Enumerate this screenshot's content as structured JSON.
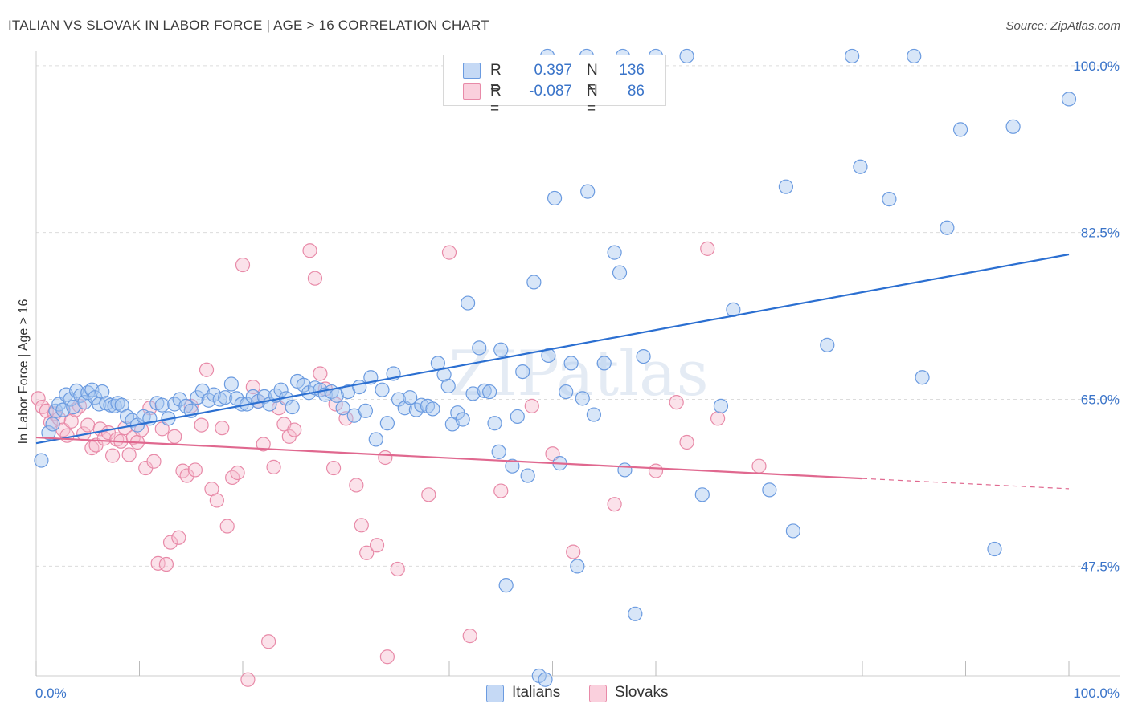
{
  "header": {
    "title": "ITALIAN VS SLOVAK IN LABOR FORCE | AGE > 16 CORRELATION CHART",
    "source": "Source: ZipAtlas.com"
  },
  "legend": {
    "rows": [
      {
        "r_label": "R =",
        "r_value": "0.397",
        "n_label": "N =",
        "n_value": "136"
      },
      {
        "r_label": "R =",
        "r_value": "-0.087",
        "n_label": "N =",
        "n_value": "86"
      }
    ],
    "bottom": [
      {
        "label": "Italians"
      },
      {
        "label": "Slovaks"
      }
    ]
  },
  "watermark": "ZIPatlas",
  "colors": {
    "italians_fill": "#a9c8f0",
    "italians_stroke": "#6b9be0",
    "italians_line": "#2b6fd1",
    "slovaks_fill": "#f7bfd0",
    "slovaks_stroke": "#e88aa8",
    "slovaks_line": "#e0688f",
    "tick_text": "#3a74c9",
    "grid": "#dcdcdc"
  },
  "chart_data": {
    "type": "scatter",
    "title": "ITALIAN VS SLOVAK IN LABOR FORCE | AGE > 16 CORRELATION CHART",
    "xlabel": "",
    "ylabel": "In Labor Force | Age > 16",
    "xlim": [
      0,
      100
    ],
    "ylim": [
      36,
      101.5
    ],
    "x_tick_labels": [
      "0.0%",
      "100.0%"
    ],
    "y_ticks": [
      47.5,
      65.0,
      82.5,
      100.0
    ],
    "y_tick_labels": [
      "47.5%",
      "65.0%",
      "82.5%",
      "100.0%"
    ],
    "grid": true,
    "legend_position": "top-center",
    "series": [
      {
        "name": "Italians",
        "R": 0.397,
        "N": 136,
        "trend": {
          "x": [
            0,
            100
          ],
          "y": [
            60.4,
            80.2
          ],
          "dashed_from": null
        },
        "points": [
          [
            0.5,
            58.6
          ],
          [
            1.2,
            61.5
          ],
          [
            1.6,
            62.4
          ],
          [
            1.9,
            63.8
          ],
          [
            2.2,
            64.5
          ],
          [
            2.6,
            63.9
          ],
          [
            2.9,
            65.5
          ],
          [
            3.3,
            65.0
          ],
          [
            3.6,
            64.2
          ],
          [
            3.9,
            65.9
          ],
          [
            4.3,
            65.4
          ],
          [
            4.7,
            64.7
          ],
          [
            5.0,
            65.7
          ],
          [
            5.4,
            66.0
          ],
          [
            5.7,
            65.2
          ],
          [
            6.1,
            64.5
          ],
          [
            6.4,
            65.8
          ],
          [
            6.8,
            64.6
          ],
          [
            7.2,
            64.4
          ],
          [
            7.6,
            64.3
          ],
          [
            7.9,
            64.6
          ],
          [
            8.3,
            64.4
          ],
          [
            8.8,
            63.2
          ],
          [
            9.3,
            62.8
          ],
          [
            9.8,
            62.3
          ],
          [
            10.4,
            63.2
          ],
          [
            11.0,
            63.0
          ],
          [
            11.7,
            64.6
          ],
          [
            12.2,
            64.4
          ],
          [
            12.8,
            63.0
          ],
          [
            13.4,
            64.5
          ],
          [
            13.9,
            65.0
          ],
          [
            14.5,
            64.3
          ],
          [
            15.0,
            63.8
          ],
          [
            15.6,
            65.2
          ],
          [
            16.1,
            65.9
          ],
          [
            16.7,
            64.9
          ],
          [
            17.2,
            65.5
          ],
          [
            17.8,
            65.0
          ],
          [
            18.3,
            65.2
          ],
          [
            18.9,
            66.6
          ],
          [
            19.4,
            65.1
          ],
          [
            19.9,
            64.5
          ],
          [
            20.4,
            64.5
          ],
          [
            21.0,
            65.3
          ],
          [
            21.5,
            64.8
          ],
          [
            22.1,
            65.3
          ],
          [
            22.6,
            64.5
          ],
          [
            23.2,
            65.4
          ],
          [
            23.7,
            66.0
          ],
          [
            24.2,
            65.1
          ],
          [
            24.8,
            64.2
          ],
          [
            25.3,
            66.9
          ],
          [
            25.9,
            66.5
          ],
          [
            26.4,
            65.7
          ],
          [
            27.0,
            66.2
          ],
          [
            27.5,
            66.0
          ],
          [
            28.0,
            65.5
          ],
          [
            28.6,
            65.8
          ],
          [
            29.1,
            65.4
          ],
          [
            29.7,
            64.1
          ],
          [
            30.2,
            65.8
          ],
          [
            30.8,
            63.3
          ],
          [
            31.3,
            66.3
          ],
          [
            31.9,
            63.8
          ],
          [
            32.4,
            67.3
          ],
          [
            32.9,
            60.8
          ],
          [
            33.5,
            66.0
          ],
          [
            34.0,
            62.5
          ],
          [
            34.6,
            67.7
          ],
          [
            35.1,
            65.0
          ],
          [
            35.7,
            64.1
          ],
          [
            36.2,
            65.2
          ],
          [
            36.8,
            63.9
          ],
          [
            37.3,
            64.4
          ],
          [
            37.9,
            64.3
          ],
          [
            38.4,
            64.0
          ],
          [
            38.9,
            68.8
          ],
          [
            39.5,
            67.6
          ],
          [
            39.9,
            66.4
          ],
          [
            40.3,
            62.4
          ],
          [
            40.8,
            63.6
          ],
          [
            41.3,
            62.9
          ],
          [
            41.8,
            75.1
          ],
          [
            42.3,
            65.6
          ],
          [
            42.9,
            70.4
          ],
          [
            43.4,
            65.9
          ],
          [
            43.9,
            65.8
          ],
          [
            44.4,
            62.5
          ],
          [
            45.0,
            70.2
          ],
          [
            45.5,
            45.5
          ],
          [
            46.1,
            58.0
          ],
          [
            46.6,
            63.2
          ],
          [
            47.1,
            67.9
          ],
          [
            47.6,
            57.0
          ],
          [
            48.2,
            77.3
          ],
          [
            48.7,
            36.0
          ],
          [
            49.3,
            35.6
          ],
          [
            49.6,
            69.6
          ],
          [
            50.2,
            86.1
          ],
          [
            50.7,
            58.3
          ],
          [
            51.3,
            65.8
          ],
          [
            51.8,
            68.8
          ],
          [
            52.4,
            47.5
          ],
          [
            52.9,
            65.1
          ],
          [
            53.4,
            86.8
          ],
          [
            54.0,
            63.4
          ],
          [
            55.0,
            68.8
          ],
          [
            56.0,
            80.4
          ],
          [
            56.5,
            78.3
          ],
          [
            57.0,
            57.6
          ],
          [
            58.0,
            42.5
          ],
          [
            58.8,
            69.5
          ],
          [
            60.0,
            101.0
          ],
          [
            63.0,
            101.0
          ],
          [
            64.5,
            55.0
          ],
          [
            66.3,
            64.3
          ],
          [
            67.5,
            74.4
          ],
          [
            71.0,
            55.5
          ],
          [
            72.6,
            87.3
          ],
          [
            73.3,
            51.2
          ],
          [
            76.6,
            70.7
          ],
          [
            79.0,
            101.0
          ],
          [
            79.8,
            89.4
          ],
          [
            82.6,
            86.0
          ],
          [
            85.0,
            101.0
          ],
          [
            85.8,
            67.3
          ],
          [
            88.2,
            83.0
          ],
          [
            89.5,
            93.3
          ],
          [
            92.8,
            49.3
          ],
          [
            94.6,
            93.6
          ],
          [
            100.0,
            96.5
          ],
          [
            49.5,
            101.0
          ],
          [
            53.3,
            101.0
          ],
          [
            56.8,
            101.0
          ],
          [
            44.8,
            59.5
          ]
        ]
      },
      {
        "name": "Slovaks",
        "R": -0.087,
        "N": 86,
        "trend": {
          "x": [
            0,
            80
          ],
          "y": [
            61.0,
            56.7
          ],
          "dashed_from": 80
        },
        "points": [
          [
            0.2,
            65.1
          ],
          [
            0.6,
            64.2
          ],
          [
            1.0,
            63.8
          ],
          [
            1.4,
            62.6
          ],
          [
            1.8,
            63.5
          ],
          [
            2.2,
            63.0
          ],
          [
            2.6,
            61.8
          ],
          [
            3.0,
            61.2
          ],
          [
            3.4,
            62.7
          ],
          [
            3.8,
            63.9
          ],
          [
            4.2,
            64.3
          ],
          [
            4.6,
            61.4
          ],
          [
            5.0,
            62.3
          ],
          [
            5.4,
            59.9
          ],
          [
            5.8,
            60.2
          ],
          [
            6.2,
            61.9
          ],
          [
            6.6,
            60.9
          ],
          [
            7.0,
            61.5
          ],
          [
            7.4,
            59.1
          ],
          [
            7.8,
            60.8
          ],
          [
            8.2,
            60.6
          ],
          [
            8.6,
            62.0
          ],
          [
            9.0,
            59.2
          ],
          [
            9.4,
            61.0
          ],
          [
            9.8,
            60.5
          ],
          [
            10.2,
            61.8
          ],
          [
            10.6,
            57.8
          ],
          [
            11.0,
            64.1
          ],
          [
            11.4,
            58.5
          ],
          [
            11.8,
            47.8
          ],
          [
            12.2,
            61.9
          ],
          [
            12.6,
            47.7
          ],
          [
            13.0,
            50.0
          ],
          [
            13.4,
            61.1
          ],
          [
            13.8,
            50.5
          ],
          [
            14.2,
            57.5
          ],
          [
            14.6,
            57.0
          ],
          [
            15.0,
            64.3
          ],
          [
            15.4,
            57.6
          ],
          [
            16.0,
            62.3
          ],
          [
            16.5,
            68.1
          ],
          [
            17.0,
            55.6
          ],
          [
            17.5,
            54.4
          ],
          [
            18.0,
            62.0
          ],
          [
            18.5,
            51.7
          ],
          [
            19.0,
            56.8
          ],
          [
            19.5,
            57.3
          ],
          [
            20.0,
            79.1
          ],
          [
            20.5,
            35.6
          ],
          [
            21.0,
            66.3
          ],
          [
            21.5,
            64.8
          ],
          [
            22.0,
            60.3
          ],
          [
            22.5,
            39.6
          ],
          [
            23.0,
            57.9
          ],
          [
            23.5,
            64.1
          ],
          [
            24.0,
            62.4
          ],
          [
            24.5,
            61.1
          ],
          [
            25.0,
            61.8
          ],
          [
            26.5,
            80.6
          ],
          [
            27.0,
            77.7
          ],
          [
            27.5,
            67.7
          ],
          [
            28.0,
            66.1
          ],
          [
            28.8,
            57.8
          ],
          [
            29.0,
            64.5
          ],
          [
            30.0,
            63.0
          ],
          [
            31.0,
            56.0
          ],
          [
            31.5,
            51.8
          ],
          [
            32.0,
            48.9
          ],
          [
            33.0,
            49.7
          ],
          [
            33.8,
            58.9
          ],
          [
            34.0,
            38.0
          ],
          [
            35.0,
            47.2
          ],
          [
            38.0,
            55.0
          ],
          [
            40.0,
            80.4
          ],
          [
            42.0,
            40.2
          ],
          [
            45.0,
            55.4
          ],
          [
            48.0,
            64.3
          ],
          [
            50.0,
            59.3
          ],
          [
            52.0,
            49.0
          ],
          [
            56.0,
            54.0
          ],
          [
            60.0,
            57.5
          ],
          [
            62.0,
            64.7
          ],
          [
            63.0,
            60.5
          ],
          [
            65.0,
            80.8
          ],
          [
            66.0,
            63.0
          ],
          [
            70.0,
            58.0
          ]
        ]
      }
    ]
  }
}
